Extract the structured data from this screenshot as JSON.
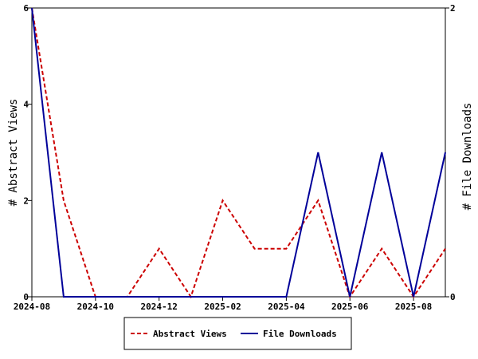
{
  "chart_data": {
    "type": "line",
    "title": "",
    "x": [
      "2024-08",
      "2024-09",
      "2024-10",
      "2024-11",
      "2024-12",
      "2025-01",
      "2025-02",
      "2025-03",
      "2025-04",
      "2025-05",
      "2025-06",
      "2025-07",
      "2025-08",
      "2025-09"
    ],
    "xticks": [
      "2024-08",
      "2024-10",
      "2024-12",
      "2025-02",
      "2025-04",
      "2025-06",
      "2025-08"
    ],
    "ylabel_left": "# Abstract Views",
    "ylabel_right": "# File Downloads",
    "ylim_left": [
      0,
      6
    ],
    "ylim_right": [
      0,
      2
    ],
    "yticks_left": [
      "0",
      "2",
      "4",
      "6"
    ],
    "yticks_right": [
      "0",
      "2"
    ],
    "grid": false,
    "legend_position": "bottom",
    "series": [
      {
        "name": "Abstract Views",
        "axis": "left",
        "color": "#cc0000",
        "style": "dashed",
        "values": [
          6,
          2,
          0,
          0,
          1,
          0,
          2,
          1,
          1,
          2,
          0,
          1,
          0,
          1
        ]
      },
      {
        "name": "File Downloads",
        "axis": "right",
        "color": "#000099",
        "style": "solid",
        "values": [
          2,
          0,
          0,
          0,
          0,
          0,
          0,
          0,
          0,
          1,
          0,
          1,
          0,
          1
        ]
      }
    ]
  }
}
